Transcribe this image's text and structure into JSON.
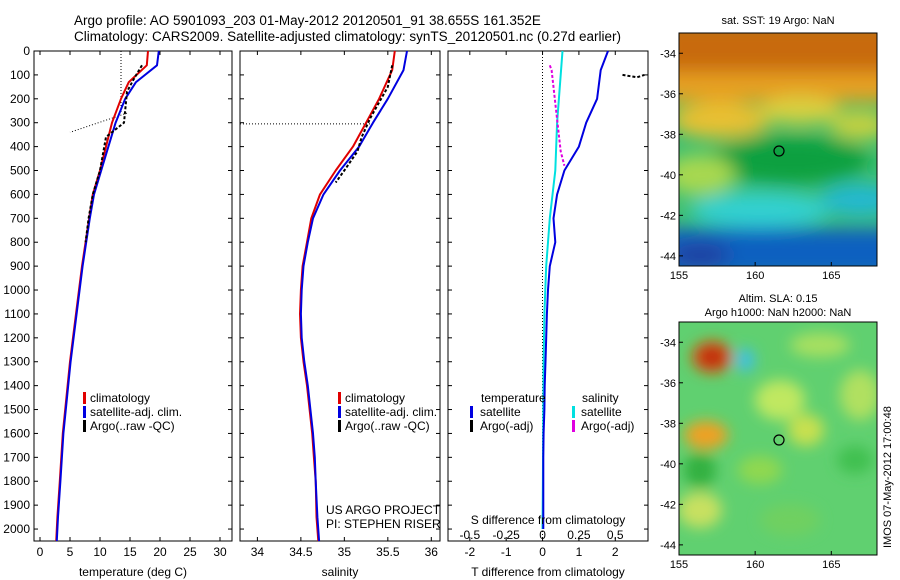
{
  "header": {
    "line1": "Argo profile: AO 5901093_203 01-May-2012 20120501_91 38.655S 161.352E",
    "line2": "Climatology: CARS2009. Satellite-adjusted climatology: synTS_20120501.nc (0.27d earlier)"
  },
  "side_stamp": "IMOS 07-May-2012 17:00:48",
  "colors": {
    "climatology": "#e00000",
    "satellite": "#0000e0",
    "argo": "#000000",
    "sal_sat": "#00e0e0",
    "sal_argo": "#e000e0"
  },
  "chart_data": [
    {
      "type": "line",
      "xlabel": "temperature (deg C)",
      "ylim": [
        2050,
        0
      ],
      "yticks": [
        0,
        100,
        200,
        300,
        400,
        500,
        600,
        700,
        800,
        900,
        1000,
        1100,
        1200,
        1300,
        1400,
        1500,
        1600,
        1700,
        1800,
        1900,
        2000
      ],
      "xlim": [
        -1,
        32
      ],
      "xticks": [
        0,
        5,
        10,
        15,
        20,
        25,
        30
      ],
      "legend": [
        "climatology",
        "satellite-adj. clim.",
        "Argo(..raw -QC)"
      ],
      "series": [
        {
          "name": "climatology",
          "points": [
            [
              18,
              0
            ],
            [
              17.8,
              60
            ],
            [
              14.8,
              130
            ],
            [
              13.5,
              200
            ],
            [
              12,
              300
            ],
            [
              11,
              400
            ],
            [
              10,
              500
            ],
            [
              8.8,
              600
            ],
            [
              8.2,
              700
            ],
            [
              7.6,
              800
            ],
            [
              7,
              900
            ],
            [
              6.5,
              1000
            ],
            [
              6,
              1100
            ],
            [
              5.5,
              1200
            ],
            [
              5,
              1300
            ],
            [
              4.4,
              1450
            ],
            [
              3.8,
              1600
            ],
            [
              3.3,
              1800
            ],
            [
              2.9,
              1950
            ],
            [
              2.7,
              2050
            ]
          ]
        },
        {
          "name": "satellite-adj. clim.",
          "points": [
            [
              19.8,
              0
            ],
            [
              19.5,
              60
            ],
            [
              16,
              130
            ],
            [
              14.2,
              200
            ],
            [
              12.6,
              300
            ],
            [
              11.4,
              400
            ],
            [
              10.2,
              500
            ],
            [
              9,
              600
            ],
            [
              8.3,
              700
            ],
            [
              7.7,
              800
            ],
            [
              7.1,
              900
            ],
            [
              6.6,
              1000
            ],
            [
              6.1,
              1100
            ],
            [
              5.6,
              1200
            ],
            [
              5.1,
              1300
            ],
            [
              4.5,
              1450
            ],
            [
              3.9,
              1600
            ],
            [
              3.4,
              1800
            ],
            [
              3,
              1950
            ],
            [
              2.8,
              2050
            ]
          ]
        },
        {
          "name": "Argo(..raw -QC)",
          "points": [
            [
              17,
              60
            ],
            [
              15.8,
              110
            ],
            [
              14.5,
              170
            ],
            [
              14,
              300
            ],
            [
              11,
              360
            ],
            [
              10,
              500
            ],
            [
              8.8,
              600
            ],
            [
              8.1,
              700
            ],
            [
              7.6,
              800
            ]
          ]
        }
      ]
    },
    {
      "type": "line",
      "xlabel": "salinity",
      "ylim": [
        2050,
        0
      ],
      "xlim": [
        33.8,
        36.1
      ],
      "xticks": [
        34,
        34.5,
        35,
        35.5,
        36
      ],
      "legend": [
        "climatology",
        "satellite-adj. clim.",
        "Argo(..raw -QC)"
      ],
      "annotation": [
        "US ARGO PROJECT",
        "PI: STEPHEN RISER"
      ],
      "series": [
        {
          "name": "climatology",
          "points": [
            [
              35.58,
              0
            ],
            [
              35.55,
              80
            ],
            [
              35.4,
              200
            ],
            [
              35.25,
              300
            ],
            [
              35.1,
              400
            ],
            [
              34.9,
              500
            ],
            [
              34.72,
              600
            ],
            [
              34.62,
              700
            ],
            [
              34.57,
              800
            ],
            [
              34.52,
              900
            ],
            [
              34.5,
              1000
            ],
            [
              34.49,
              1100
            ],
            [
              34.5,
              1200
            ],
            [
              34.53,
              1300
            ],
            [
              34.57,
              1400
            ],
            [
              34.6,
              1500
            ],
            [
              34.63,
              1600
            ],
            [
              34.65,
              1700
            ],
            [
              34.67,
              1800
            ],
            [
              34.68,
              1950
            ],
            [
              34.7,
              2050
            ]
          ]
        },
        {
          "name": "satellite-adj. clim.",
          "points": [
            [
              35.72,
              0
            ],
            [
              35.68,
              80
            ],
            [
              35.5,
              200
            ],
            [
              35.33,
              300
            ],
            [
              35.17,
              400
            ],
            [
              34.95,
              500
            ],
            [
              34.76,
              600
            ],
            [
              34.64,
              700
            ],
            [
              34.58,
              800
            ],
            [
              34.53,
              900
            ],
            [
              34.51,
              1000
            ],
            [
              34.5,
              1100
            ],
            [
              34.51,
              1200
            ],
            [
              34.54,
              1300
            ],
            [
              34.58,
              1400
            ],
            [
              34.61,
              1500
            ],
            [
              34.64,
              1600
            ],
            [
              34.66,
              1700
            ],
            [
              34.67,
              1800
            ],
            [
              34.69,
              1950
            ],
            [
              34.71,
              2050
            ]
          ]
        },
        {
          "name": "Argo(..raw -QC)",
          "points": [
            [
              35.55,
              60
            ],
            [
              35.5,
              150
            ],
            [
              35.3,
              280
            ],
            [
              35.2,
              360
            ],
            [
              35.15,
              420
            ],
            [
              35,
              500
            ],
            [
              34.9,
              550
            ]
          ]
        }
      ]
    },
    {
      "type": "line",
      "xlabel": "T difference from climatology",
      "top_label": "S difference from climatology",
      "ylim": [
        2050,
        0
      ],
      "xlim": [
        -2.6,
        2.9
      ],
      "xticks": [
        -2,
        -1,
        0,
        1,
        2
      ],
      "top_ticks": [
        "-0.5",
        "-0.25",
        "0",
        "0.25",
        "0.5"
      ],
      "legend_titles": [
        "temperature",
        "salinity"
      ],
      "legend": [
        "satellite",
        "Argo(-adj)",
        "satellite",
        "Argo(-adj)"
      ],
      "series": [
        {
          "name": "T satellite",
          "points": [
            [
              1.8,
              0
            ],
            [
              1.6,
              80
            ],
            [
              1.5,
              200
            ],
            [
              1.2,
              300
            ],
            [
              1,
              400
            ],
            [
              0.6,
              500
            ],
            [
              0.4,
              600
            ],
            [
              0.3,
              700
            ],
            [
              0.35,
              800
            ],
            [
              0.2,
              900
            ],
            [
              0.15,
              1000
            ],
            [
              0.12,
              1100
            ],
            [
              0.1,
              1200
            ],
            [
              0.08,
              1300
            ],
            [
              0.06,
              1400
            ],
            [
              0.05,
              1500
            ],
            [
              0.03,
              1600
            ],
            [
              0.02,
              1700
            ],
            [
              0.02,
              1800
            ],
            [
              0.02,
              2000
            ]
          ]
        },
        {
          "name": "T Argo",
          "points": [
            [
              2.2,
              100
            ],
            [
              2.6,
              110
            ],
            [
              2.8,
              100
            ]
          ]
        },
        {
          "name": "S satellite",
          "points": [
            [
              0.55,
              0
            ],
            [
              0.5,
              100
            ],
            [
              0.45,
              200
            ],
            [
              0.4,
              300
            ],
            [
              0.35,
              500
            ],
            [
              0.2,
              700
            ],
            [
              0.1,
              900
            ],
            [
              0.05,
              1100
            ],
            [
              0.03,
              1300
            ],
            [
              0.02,
              1500
            ],
            [
              0.01,
              1800
            ],
            [
              0,
              2000
            ]
          ]
        },
        {
          "name": "S Argo",
          "points": [
            [
              0.2,
              60
            ],
            [
              0.25,
              80
            ],
            [
              0.5,
              420
            ],
            [
              0.6,
              480
            ]
          ]
        }
      ]
    },
    {
      "type": "heatmap",
      "title": "sat. SST: 19 Argo: NaN",
      "xticks": [
        155,
        160,
        165
      ],
      "yticks": [
        -34,
        -36,
        -38,
        -40,
        -42,
        -44
      ],
      "xlim": [
        155,
        168
      ],
      "ylim": [
        -44.5,
        -33
      ]
    },
    {
      "type": "heatmap",
      "title": "Altim. SLA: 0.15",
      "subtitle": "Argo h1000: NaN h2000: NaN",
      "xticks": [
        155,
        160,
        165
      ],
      "yticks": [
        -34,
        -36,
        -38,
        -40,
        -42,
        -44
      ],
      "xlim": [
        155,
        168
      ],
      "ylim": [
        -44.5,
        -33
      ]
    }
  ]
}
